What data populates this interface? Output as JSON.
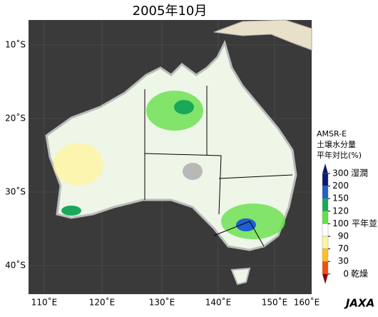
{
  "title": "2005年10月",
  "lat_labels": [
    "10˚S",
    "20˚S",
    "30˚S",
    "40˚S"
  ],
  "lon_labels": [
    "110˚E",
    "120˚E",
    "130˚E",
    "140˚E",
    "150˚E",
    "160˚E"
  ],
  "legend": {
    "lines": [
      "AMSR-E",
      "土壌水分量",
      "平年対比(%)"
    ],
    "ticks": [
      300,
      200,
      150,
      120,
      100,
      90,
      70,
      30,
      0
    ],
    "colors": [
      "#0a1a6e",
      "#1f5fd0",
      "#1aa85a",
      "#66e04a",
      "#ffffff",
      "#fff5a0",
      "#ffc020",
      "#f05010",
      "#8a0010"
    ],
    "wet": "湿潤",
    "normal": "平年並",
    "dry": "乾燥"
  },
  "logo": "JAXA"
}
